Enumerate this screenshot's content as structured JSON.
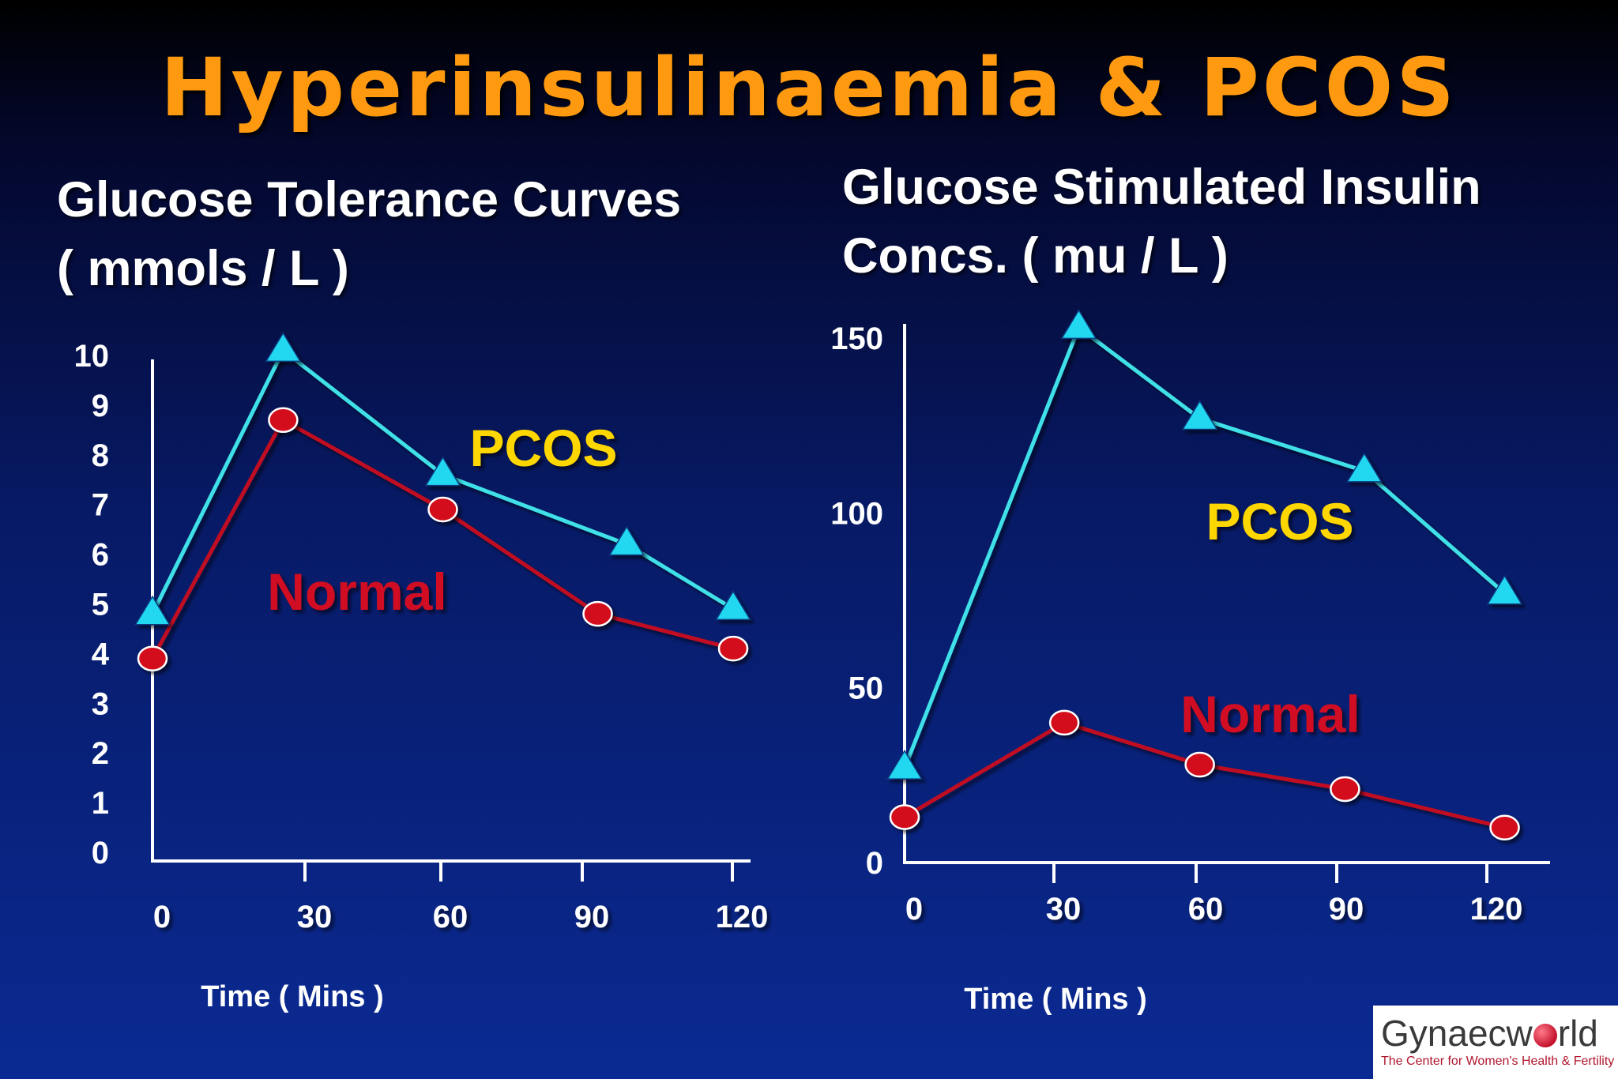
{
  "slide": {
    "title": "Hyperinsulinaemia & PCOS",
    "left_subtitle_line1": "Glucose Tolerance Curves",
    "left_subtitle_line2": "( mmols / L )",
    "right_subtitle_line1": "Glucose Stimulated Insulin",
    "right_subtitle_line2": "Concs. ( mu / L )"
  },
  "logo": {
    "name_part1": "Gynaecw",
    "name_part2": "rld",
    "tagline": "The Center for Women's Health & Fertility"
  },
  "colors": {
    "background": "#0a2a93",
    "title": "#ff9a10",
    "pcos_line": "#3fe0e8",
    "pcos_marker": "#20d8f0",
    "normal_line": "#c01020",
    "normal_marker": "#d4101e",
    "pcos_label": "#ffd700",
    "normal_label": "#d01020"
  },
  "chart_data": [
    {
      "type": "line",
      "title": "Glucose Tolerance Curves ( mmols / L )",
      "xlabel": "Time ( Mins )",
      "ylabel": "",
      "x_ticks": [
        "0",
        "30",
        "60",
        "90",
        "120"
      ],
      "y_ticks": [
        "0",
        "1",
        "2",
        "3",
        "4",
        "5",
        "6",
        "7",
        "8",
        "9",
        "10"
      ],
      "xlim": [
        0,
        120
      ],
      "ylim": [
        0,
        10
      ],
      "grid": false,
      "series": [
        {
          "name": "PCOS",
          "marker": "triangle",
          "x": [
            0,
            27,
            60,
            98,
            120
          ],
          "y": [
            4.8,
            10.1,
            7.6,
            6.2,
            4.9
          ]
        },
        {
          "name": "Normal",
          "marker": "circle",
          "x": [
            0,
            27,
            60,
            92,
            120
          ],
          "y": [
            3.9,
            8.7,
            6.9,
            4.8,
            4.1
          ]
        }
      ]
    },
    {
      "type": "line",
      "title": "Glucose Stimulated Insulin Concs. ( mu / L )",
      "xlabel": "Time ( Mins )",
      "ylabel": "",
      "x_ticks": [
        "0",
        "30",
        "60",
        "90",
        "120"
      ],
      "y_ticks": [
        "0",
        "50",
        "100",
        "150"
      ],
      "xlim": [
        0,
        120
      ],
      "ylim": [
        0,
        150
      ],
      "grid": false,
      "series": [
        {
          "name": "PCOS",
          "marker": "triangle",
          "x": [
            0,
            36,
            61,
            95,
            124
          ],
          "y": [
            27,
            153,
            127,
            112,
            77
          ]
        },
        {
          "name": "Normal",
          "marker": "circle",
          "x": [
            0,
            33,
            61,
            91,
            124
          ],
          "y": [
            13,
            40,
            28,
            21,
            10
          ]
        }
      ]
    }
  ]
}
